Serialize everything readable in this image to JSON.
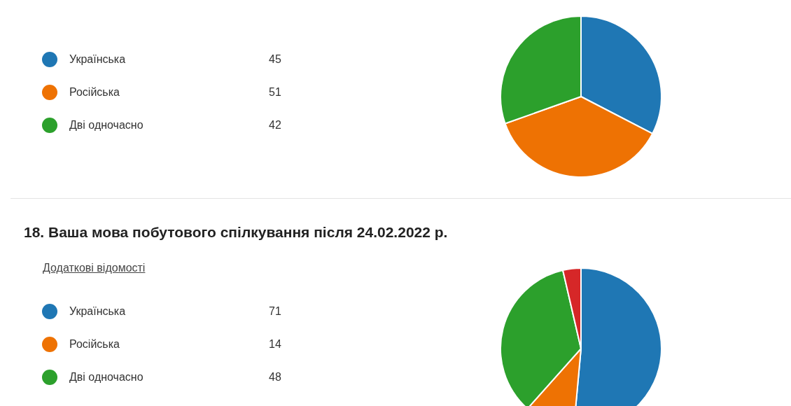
{
  "chart_data": [
    {
      "type": "pie",
      "categories": [
        "Українська",
        "Російська",
        "Дві одночасно"
      ],
      "values": [
        45,
        51,
        42
      ],
      "colors": [
        "#1f77b4",
        "#ee7203",
        "#2ca02c"
      ],
      "data_labels": true,
      "legend": "left"
    },
    {
      "type": "pie",
      "title": "18. Ваша мова побутового спілкування після 24.02.2022 р.",
      "annotations": [
        "Додаткові відомості"
      ],
      "categories": [
        "Українська",
        "Російська",
        "Дві одночасно",
        null
      ],
      "values": [
        71,
        14,
        48,
        5
      ],
      "value_labels": [
        "71",
        "14",
        "48",
        null
      ],
      "colors": [
        "#1f77b4",
        "#ee7203",
        "#2ca02c",
        "#d62728"
      ],
      "legend": "left"
    }
  ]
}
